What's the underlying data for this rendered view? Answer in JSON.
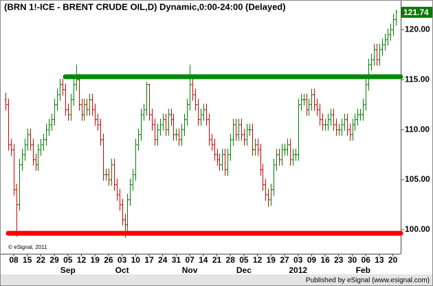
{
  "chart_data": {
    "type": "ohlc",
    "title": "(BRN 1!-ICE - BRENT CRUDE OIL,D) Dynamic,0:00-24:00 (Delayed)",
    "annotation": "© eSignal, 2011",
    "categories": [
      null,
      null,
      null,
      "08",
      null,
      null,
      null,
      null,
      "15",
      null,
      null,
      null,
      null,
      "22",
      null,
      null,
      null,
      null,
      "29",
      null,
      null,
      null,
      null,
      "05",
      null,
      null,
      null,
      null,
      "12",
      null,
      null,
      null,
      null,
      "19",
      null,
      null,
      null,
      null,
      "26",
      null,
      null,
      null,
      null,
      "03",
      null,
      null,
      null,
      null,
      "10",
      null,
      null,
      null,
      null,
      "17",
      null,
      null,
      null,
      null,
      "24",
      null,
      null,
      null,
      null,
      "31",
      null,
      null,
      null,
      null,
      "07",
      null,
      null,
      null,
      null,
      "14",
      null,
      null,
      null,
      null,
      "21",
      null,
      null,
      null,
      null,
      "28",
      null,
      null,
      null,
      null,
      "05",
      null,
      null,
      null,
      null,
      "12",
      null,
      null,
      null,
      null,
      "19",
      null,
      null,
      null,
      null,
      "27",
      null,
      null,
      null,
      null,
      "03",
      null,
      null,
      null,
      null,
      "09",
      null,
      null,
      null,
      null,
      "16",
      null,
      null,
      null,
      null,
      "23",
      null,
      null,
      null,
      null,
      "30",
      null,
      null,
      null,
      null,
      "06",
      null,
      null,
      null,
      null,
      "13",
      null,
      null,
      null,
      null,
      "20",
      null
    ],
    "category_groups": [
      null,
      null,
      null,
      null,
      null,
      null,
      null,
      null,
      null,
      null,
      null,
      null,
      null,
      null,
      null,
      null,
      null,
      null,
      null,
      null,
      null,
      null,
      null,
      "Sep",
      null,
      null,
      null,
      null,
      null,
      null,
      null,
      null,
      null,
      null,
      null,
      null,
      null,
      null,
      null,
      null,
      null,
      null,
      null,
      "Oct",
      null,
      null,
      null,
      null,
      null,
      null,
      null,
      null,
      null,
      null,
      null,
      null,
      null,
      null,
      null,
      null,
      null,
      null,
      null,
      null,
      null,
      null,
      null,
      null,
      "Nov",
      null,
      null,
      null,
      null,
      null,
      null,
      null,
      null,
      null,
      null,
      null,
      null,
      null,
      null,
      null,
      null,
      null,
      null,
      null,
      "Dec",
      null,
      null,
      null,
      null,
      null,
      null,
      null,
      null,
      null,
      null,
      null,
      null,
      null,
      null,
      null,
      null,
      null,
      null,
      null,
      "2012",
      null,
      null,
      null,
      null,
      null,
      null,
      null,
      null,
      null,
      null,
      null,
      null,
      null,
      null,
      null,
      null,
      null,
      null,
      null,
      null,
      null,
      null,
      null,
      "Feb",
      null,
      null,
      null,
      null,
      null,
      null,
      null,
      null,
      null,
      null,
      null
    ],
    "open": [
      113.0,
      112.5,
      108.5,
      108.0,
      104.0,
      102.5,
      106.5,
      107.5,
      108.5,
      109.5,
      108.5,
      107.0,
      106.5,
      108.0,
      108.5,
      109.0,
      110.0,
      110.5,
      111.0,
      112.5,
      113.5,
      114.5,
      114.0,
      112.0,
      111.5,
      113.0,
      114.5,
      115.0,
      112.5,
      111.5,
      112.5,
      112.0,
      113.0,
      112.0,
      111.0,
      110.5,
      109.0,
      105.5,
      105.5,
      105.0,
      106.5,
      104.5,
      103.5,
      102.5,
      101.0,
      100.5,
      103.0,
      104.5,
      105.5,
      108.5,
      109.5,
      111.5,
      112.0,
      114.5,
      111.5,
      110.5,
      109.0,
      110.0,
      110.5,
      111.0,
      110.0,
      111.5,
      111.0,
      109.5,
      109.5,
      109.0,
      110.0,
      111.0,
      112.5,
      114.5,
      113.5,
      112.5,
      111.0,
      111.5,
      112.0,
      111.0,
      109.0,
      108.5,
      107.5,
      107.0,
      106.5,
      107.5,
      106.0,
      107.5,
      109.0,
      110.5,
      109.5,
      110.5,
      109.5,
      109.0,
      110.0,
      110.0,
      108.0,
      108.5,
      108.0,
      106.0,
      104.5,
      103.5,
      103.0,
      104.0,
      106.5,
      107.5,
      107.0,
      108.0,
      108.0,
      108.5,
      107.0,
      107.5,
      107.5,
      112.5,
      113.0,
      113.0,
      112.0,
      112.5,
      113.5,
      112.5,
      112.0,
      111.0,
      110.5,
      110.5,
      111.0,
      111.5,
      110.5,
      110.0,
      110.0,
      110.5,
      111.0,
      110.0,
      109.5,
      110.5,
      111.0,
      111.5,
      111.5,
      112.5,
      114.5,
      116.5,
      117.0,
      118.0,
      117.0,
      118.0,
      118.5,
      119.0,
      119.5,
      120.0,
      121.0
    ],
    "high": [
      113.7,
      113.1,
      109.1,
      108.6,
      104.6,
      107.1,
      108.1,
      109.1,
      110.1,
      110.1,
      109.1,
      107.6,
      108.6,
      109.1,
      109.6,
      110.6,
      111.1,
      111.6,
      113.1,
      114.1,
      115.1,
      115.1,
      114.6,
      112.6,
      113.6,
      115.1,
      116.5,
      115.6,
      113.1,
      113.1,
      113.1,
      113.6,
      113.6,
      112.6,
      111.6,
      111.1,
      109.6,
      106.1,
      106.1,
      107.1,
      107.1,
      105.1,
      104.1,
      103.1,
      101.6,
      103.6,
      105.1,
      106.1,
      109.1,
      110.1,
      112.1,
      112.6,
      114.8,
      114.6,
      112.1,
      111.1,
      110.6,
      111.1,
      111.6,
      111.6,
      112.1,
      112.1,
      111.6,
      110.1,
      110.1,
      110.6,
      111.6,
      113.1,
      116.5,
      115.1,
      114.1,
      113.1,
      112.1,
      112.6,
      112.6,
      111.6,
      109.6,
      109.1,
      108.1,
      107.6,
      108.1,
      108.1,
      108.1,
      109.6,
      111.1,
      111.1,
      111.1,
      111.1,
      110.1,
      110.6,
      110.6,
      110.6,
      109.1,
      109.1,
      108.6,
      106.6,
      105.1,
      104.1,
      104.6,
      107.1,
      108.1,
      108.1,
      108.6,
      108.6,
      109.1,
      109.1,
      108.1,
      108.1,
      113.1,
      113.6,
      113.6,
      113.6,
      113.1,
      114.1,
      114.1,
      113.1,
      112.6,
      111.6,
      111.1,
      111.6,
      112.1,
      112.1,
      111.1,
      110.6,
      111.1,
      111.6,
      111.6,
      110.6,
      111.1,
      111.6,
      112.1,
      112.1,
      113.1,
      115.1,
      117.1,
      117.6,
      118.6,
      118.6,
      118.6,
      119.1,
      119.6,
      120.1,
      120.6,
      121.6,
      122.0
    ],
    "low": [
      111.9,
      107.9,
      107.4,
      103.4,
      99.3,
      101.9,
      105.9,
      106.9,
      107.9,
      107.9,
      106.4,
      105.9,
      105.9,
      107.4,
      107.9,
      108.4,
      109.4,
      109.9,
      110.4,
      111.9,
      112.9,
      113.4,
      111.4,
      110.9,
      110.9,
      112.4,
      113.9,
      111.9,
      110.9,
      110.9,
      111.4,
      111.4,
      111.4,
      110.4,
      109.9,
      108.4,
      104.9,
      104.9,
      104.4,
      104.4,
      103.9,
      102.9,
      101.9,
      100.4,
      99.2,
      99.9,
      102.4,
      103.9,
      104.9,
      107.9,
      108.9,
      110.9,
      111.4,
      110.9,
      109.9,
      108.4,
      108.4,
      109.4,
      109.9,
      109.4,
      109.4,
      110.4,
      108.9,
      108.9,
      108.4,
      108.4,
      109.4,
      110.4,
      111.9,
      112.9,
      111.9,
      110.4,
      110.4,
      110.9,
      110.4,
      108.4,
      107.9,
      106.9,
      106.4,
      105.9,
      105.9,
      105.4,
      105.4,
      106.9,
      108.4,
      108.9,
      108.9,
      108.9,
      108.4,
      108.4,
      109.4,
      107.4,
      107.4,
      107.4,
      105.4,
      103.9,
      102.9,
      102.3,
      102.4,
      103.4,
      105.9,
      106.4,
      106.4,
      107.4,
      107.4,
      106.4,
      106.4,
      106.9,
      106.9,
      111.9,
      112.4,
      111.4,
      111.4,
      111.9,
      111.9,
      111.4,
      110.4,
      109.9,
      109.9,
      109.9,
      110.4,
      109.9,
      109.4,
      109.4,
      109.4,
      109.9,
      109.4,
      108.9,
      108.9,
      109.9,
      110.4,
      110.9,
      110.9,
      111.9,
      113.9,
      115.9,
      116.4,
      116.4,
      116.4,
      117.4,
      117.9,
      118.4,
      118.9,
      119.4,
      120.4
    ],
    "close": [
      112.5,
      108.5,
      108.0,
      104.0,
      102.5,
      106.5,
      107.5,
      108.5,
      109.5,
      108.5,
      107.0,
      106.5,
      108.0,
      108.5,
      109.0,
      110.0,
      110.5,
      111.0,
      112.5,
      113.5,
      114.5,
      114.0,
      112.0,
      111.5,
      113.0,
      114.5,
      115.0,
      112.5,
      111.5,
      112.5,
      112.0,
      113.0,
      112.0,
      111.0,
      110.5,
      109.0,
      105.5,
      105.5,
      105.0,
      106.5,
      104.5,
      103.5,
      102.5,
      101.0,
      100.5,
      103.0,
      104.5,
      105.5,
      108.5,
      109.5,
      111.5,
      112.0,
      114.5,
      111.5,
      110.5,
      109.0,
      110.0,
      110.5,
      111.0,
      110.0,
      111.5,
      111.0,
      109.5,
      109.5,
      109.0,
      110.0,
      111.0,
      112.5,
      114.5,
      113.5,
      112.5,
      111.0,
      111.5,
      112.0,
      111.0,
      109.0,
      108.5,
      107.5,
      107.0,
      106.5,
      107.5,
      106.0,
      107.5,
      109.0,
      110.5,
      109.5,
      110.5,
      109.5,
      109.0,
      110.0,
      110.0,
      108.0,
      108.5,
      108.0,
      106.0,
      104.5,
      103.5,
      103.0,
      104.0,
      106.5,
      107.5,
      107.0,
      108.0,
      108.0,
      108.5,
      107.0,
      107.5,
      107.5,
      112.5,
      113.0,
      113.0,
      112.0,
      112.5,
      113.5,
      112.5,
      112.0,
      111.0,
      110.5,
      110.5,
      111.0,
      111.5,
      110.5,
      110.0,
      110.0,
      110.5,
      111.0,
      110.0,
      109.5,
      110.5,
      111.0,
      111.5,
      111.5,
      112.5,
      114.5,
      116.5,
      117.0,
      118.0,
      117.0,
      118.0,
      118.5,
      119.0,
      119.5,
      120.0,
      121.0,
      121.74
    ],
    "up_color": "#007a00",
    "down_color": "#c80000",
    "last_color": "#0a7a0a",
    "ylim": [
      97.6,
      122.9
    ],
    "yticks": [
      {
        "value": 100,
        "label": "100.00"
      },
      {
        "value": 105,
        "label": "105.00"
      },
      {
        "value": 110,
        "label": "110.00"
      },
      {
        "value": 115,
        "label": "115.00"
      },
      {
        "value": 120,
        "label": "120.00"
      }
    ],
    "levels": [
      {
        "value": 115.3,
        "color": "#008a00"
      },
      {
        "value": 99.65,
        "color": "#ff0000"
      }
    ]
  },
  "footer": "Published by eSignal (www.esignal.com)"
}
